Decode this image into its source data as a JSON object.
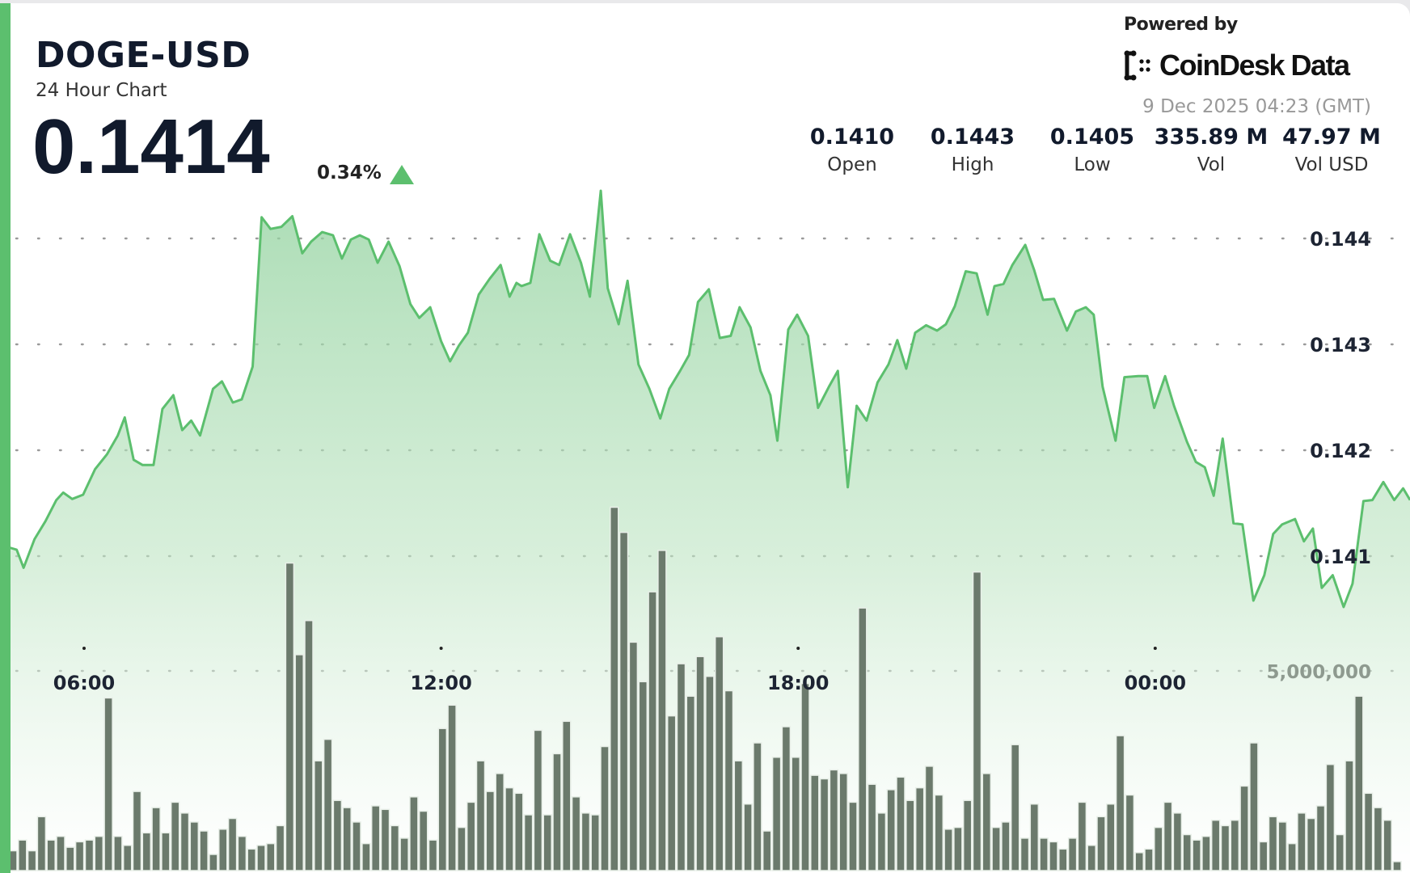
{
  "header": {
    "symbol": "DOGE-USD",
    "subtitle": "24 Hour Chart",
    "price": "0.1414",
    "change_pct": "0.34%",
    "change_direction": "up",
    "powered_by": "Powered by",
    "brand": "CoinDesk Data",
    "timestamp": "9 Dec 2025 04:23 (GMT)"
  },
  "stats": [
    {
      "value": "0.1410",
      "label": "Open"
    },
    {
      "value": "0.1443",
      "label": "High"
    },
    {
      "value": "0.1405",
      "label": "Low"
    },
    {
      "value": "335.89 M",
      "label": "Vol"
    },
    {
      "value": "47.97 M",
      "label": "Vol USD"
    }
  ],
  "colors": {
    "accent": "#5cbf6e",
    "line": "#5cbf6e",
    "volume_bar": "#6b7a6c",
    "text": "#111a2c"
  },
  "chart_data": {
    "type": "area",
    "grid": true,
    "price_axis": {
      "ticks": [
        0.144,
        0.143,
        0.142,
        0.141
      ],
      "tick_labels": [
        "0.144",
        "0.143",
        "0.142",
        "0.141"
      ],
      "position": "right"
    },
    "time_axis": {
      "tick_labels": [
        "06:00",
        "12:00",
        "18:00",
        "00:00"
      ]
    },
    "volume_axis": {
      "ticks": [
        5000000
      ],
      "tick_labels": [
        "5,000,000"
      ]
    },
    "price_series": {
      "times": [
        "04:45",
        "04:52",
        "04:59",
        "05:10",
        "05:21",
        "05:32",
        "05:39",
        "05:48",
        "05:59",
        "06:11",
        "06:23",
        "06:34",
        "06:41",
        "06:50",
        "06:59",
        "07:10",
        "07:19",
        "07:30",
        "07:39",
        "07:48",
        "07:57",
        "08:10",
        "08:19",
        "08:30",
        "08:39",
        "08:50",
        "08:59",
        "09:08",
        "09:19",
        "09:30",
        "09:40",
        "09:49",
        "10:00",
        "10:11",
        "10:20",
        "10:29",
        "10:38",
        "10:47",
        "10:56",
        "11:07",
        "11:18",
        "11:29",
        "11:38",
        "11:49",
        "12:00",
        "12:09",
        "12:18",
        "12:27",
        "12:38",
        "12:49",
        "13:00",
        "13:09",
        "13:16",
        "13:21",
        "13:30",
        "13:39",
        "13:50",
        "13:59",
        "14:10",
        "14:21",
        "14:30",
        "14:41",
        "14:48",
        "14:59",
        "15:08",
        "15:19",
        "15:30",
        "15:41",
        "15:50",
        "16:01",
        "16:10",
        "16:19",
        "16:30",
        "16:41",
        "16:52",
        "17:01",
        "17:12",
        "17:22",
        "17:32",
        "17:39",
        "17:50",
        "17:59",
        "18:10",
        "18:20",
        "18:31",
        "18:40",
        "18:50",
        "18:59",
        "19:09",
        "19:20",
        "19:31",
        "19:40",
        "19:49",
        "19:58",
        "20:09",
        "20:20",
        "20:29",
        "20:38",
        "20:49",
        "21:00",
        "21:11",
        "21:18",
        "21:27",
        "21:36",
        "21:49",
        "21:58",
        "22:07",
        "22:18",
        "22:31",
        "22:40",
        "22:50",
        "22:58",
        "23:07",
        "23:20",
        "23:29",
        "23:43",
        "23:52",
        "23:59",
        "00:10",
        "00:19",
        "00:32",
        "00:41",
        "00:50",
        "00:59",
        "01:08",
        "01:19",
        "01:28",
        "01:39",
        "01:50",
        "01:59",
        "02:08",
        "02:21",
        "02:30",
        "02:39",
        "02:48",
        "02:59",
        "03:10",
        "03:19",
        "03:30",
        "03:39",
        "03:50",
        "04:01",
        "04:10",
        "04:17"
      ],
      "prices": [
        0.14108,
        0.14106,
        0.14089,
        0.14116,
        0.14133,
        0.14153,
        0.1416,
        0.14154,
        0.14158,
        0.14182,
        0.14196,
        0.14214,
        0.14231,
        0.14191,
        0.14186,
        0.14186,
        0.14239,
        0.14252,
        0.14219,
        0.14228,
        0.14214,
        0.14258,
        0.14265,
        0.14245,
        0.14248,
        0.14279,
        0.1442,
        0.14409,
        0.14411,
        0.14421,
        0.14386,
        0.14397,
        0.14406,
        0.14403,
        0.14381,
        0.14399,
        0.14403,
        0.14399,
        0.14377,
        0.14397,
        0.14374,
        0.14338,
        0.14325,
        0.14335,
        0.14303,
        0.14284,
        0.14299,
        0.14311,
        0.14347,
        0.14362,
        0.14375,
        0.14345,
        0.14358,
        0.14355,
        0.14358,
        0.14404,
        0.14379,
        0.14375,
        0.14404,
        0.14377,
        0.14345,
        0.14445,
        0.14353,
        0.14319,
        0.1436,
        0.14281,
        0.14258,
        0.1423,
        0.14258,
        0.14275,
        0.1429,
        0.1434,
        0.14352,
        0.14306,
        0.14308,
        0.14335,
        0.14316,
        0.14275,
        0.14252,
        0.14209,
        0.14314,
        0.14328,
        0.14308,
        0.1424,
        0.1426,
        0.14275,
        0.14165,
        0.14242,
        0.14228,
        0.14264,
        0.14281,
        0.14304,
        0.14277,
        0.14311,
        0.14318,
        0.14313,
        0.14319,
        0.14336,
        0.14369,
        0.14367,
        0.14328,
        0.14355,
        0.14357,
        0.14375,
        0.14394,
        0.1437,
        0.14342,
        0.14343,
        0.14313,
        0.14331,
        0.14335,
        0.14328,
        0.1426,
        0.14209,
        0.14269,
        0.1427,
        0.1427,
        0.1424,
        0.1427,
        0.14242,
        0.14208,
        0.14189,
        0.14184,
        0.14157,
        0.14211,
        0.14131,
        0.1413,
        0.14058,
        0.14082,
        0.14121,
        0.1413,
        0.14135,
        0.14114,
        0.14126,
        0.1407,
        0.14082,
        0.14052,
        0.14074,
        0.14152,
        0.14153,
        0.1417,
        0.14153,
        0.14164,
        0.14153
      ]
    },
    "volume_series": {
      "type": "bar",
      "values": [
        495000,
        766000,
        495000,
        1351000,
        766000,
        856000,
        586000,
        721000,
        766000,
        856000,
        4324000,
        856000,
        631000,
        1982000,
        946000,
        1577000,
        946000,
        1712000,
        1441000,
        1216000,
        991000,
        405000,
        1036000,
        1306000,
        856000,
        541000,
        631000,
        676000,
        1126000,
        7703000,
        5406000,
        6261000,
        2748000,
        3288000,
        1757000,
        1577000,
        1216000,
        676000,
        1622000,
        1532000,
        1126000,
        811000,
        1847000,
        1487000,
        766000,
        3559000,
        4144000,
        1081000,
        1712000,
        2748000,
        1982000,
        2432000,
        2072000,
        1937000,
        1396000,
        3514000,
        1396000,
        2928000,
        3739000,
        1847000,
        1441000,
        1396000,
        3108000,
        9099000,
        8469000,
        5721000,
        4730000,
        6982000,
        8018000,
        3874000,
        5180000,
        4369000,
        5360000,
        4865000,
        5856000,
        4505000,
        2748000,
        1667000,
        3198000,
        991000,
        2838000,
        3604000,
        2838000,
        4685000,
        2387000,
        2297000,
        2523000,
        2432000,
        1712000,
        6577000,
        2162000,
        1441000,
        2027000,
        2342000,
        1757000,
        2072000,
        2613000,
        1892000,
        1036000,
        1081000,
        1757000,
        7478000,
        2432000,
        1081000,
        1216000,
        3153000,
        811000,
        1667000,
        811000,
        721000,
        541000,
        811000,
        1712000,
        631000,
        1351000,
        1667000,
        3378000,
        1892000,
        450000,
        541000,
        1081000,
        1712000,
        1441000,
        901000,
        766000,
        856000,
        1261000,
        1126000,
        1261000,
        2117000,
        3198000,
        721000,
        1351000,
        1216000,
        676000,
        1441000,
        1306000,
        1622000,
        2658000,
        901000,
        2748000,
        4369000,
        1937000,
        1577000,
        1261000,
        225000
      ]
    }
  }
}
